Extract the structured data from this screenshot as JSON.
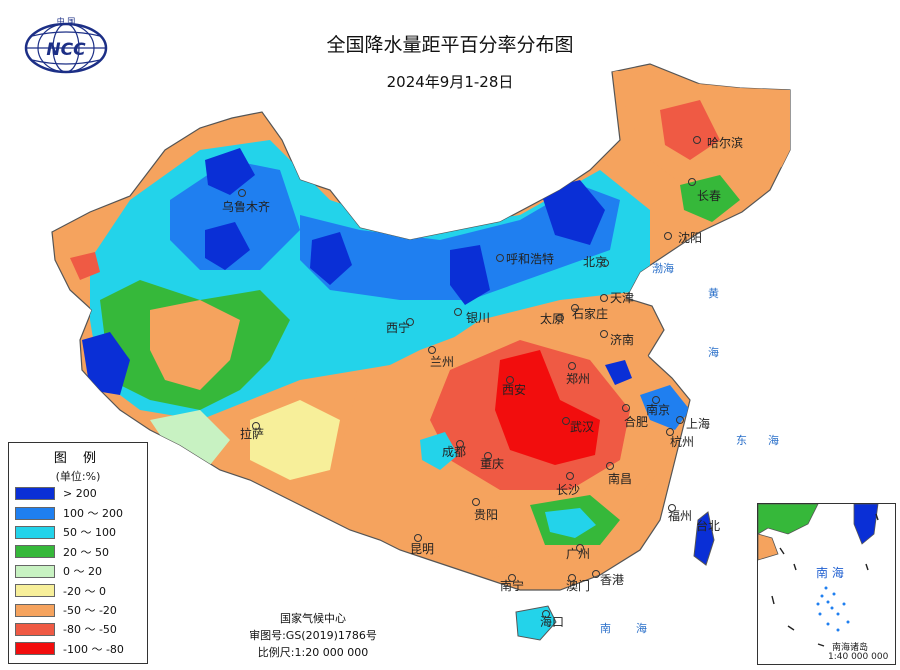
{
  "header": {
    "title": "全国降水量距平百分率分布图",
    "subtitle": "2024年9月1-28日"
  },
  "logo": {
    "text": "NCC",
    "top_text": "中 国",
    "icon": "ncc-globe-logo"
  },
  "legend": {
    "title": "图 例",
    "unit": "(单位:%)",
    "items": [
      {
        "label": "> 200",
        "color": "#0a2fd6"
      },
      {
        "label": "100 ～ 200",
        "color": "#1f7ff0"
      },
      {
        "label": "50 ～ 100",
        "color": "#23d3ea"
      },
      {
        "label": "20 ～ 50",
        "color": "#36b83a"
      },
      {
        "label": "0 ～ 20",
        "color": "#c8f2c2"
      },
      {
        "label": "-20 ～ 0",
        "color": "#f7ef9a"
      },
      {
        "label": "-50 ～ -20",
        "color": "#f5a35e"
      },
      {
        "label": "-80 ～ -50",
        "color": "#ef5a44"
      },
      {
        "label": "-100 ～ -80",
        "color": "#f20d0d"
      }
    ]
  },
  "footer": {
    "agency": "国家气候中心",
    "approval": "审图号:GS(2019)1786号",
    "scale": "比例尺:1:20 000 000"
  },
  "inset": {
    "title": "南 海",
    "islands_label": "南海诸岛",
    "scale": "1:40 000 000"
  },
  "cities": {
    "urumqi": "乌鲁木齐",
    "harbin": "哈尔滨",
    "changchun": "长春",
    "shenyang": "沈阳",
    "hohhot": "呼和浩特",
    "beijing": "北京",
    "tianjin": "天津",
    "taiyuan": "太原",
    "shijiazhuang": "石家庄",
    "yinchuan": "银川",
    "xining": "西宁",
    "lanzhou": "兰州",
    "jinan": "济南",
    "zhengzhou": "郑州",
    "xian": "西安",
    "nanjing": "南京",
    "hefei": "合肥",
    "shanghai": "上海",
    "hangzhou": "杭州",
    "wuhan": "武汉",
    "lhasa": "拉萨",
    "chengdu": "成都",
    "chongqing": "重庆",
    "changsha": "长沙",
    "nanchang": "南昌",
    "fuzhou": "福州",
    "taibei": "台北",
    "guiyang": "贵阳",
    "kunming": "昆明",
    "guangzhou": "广州",
    "nanning": "南宁",
    "hongkong": "香港",
    "macau": "澳门",
    "haikou": "海口"
  },
  "seas": {
    "bohai": "渤海",
    "yellow1": "黄",
    "yellow2": "海",
    "east1": "东",
    "east2": "海",
    "south1": "南",
    "south2": "海"
  }
}
